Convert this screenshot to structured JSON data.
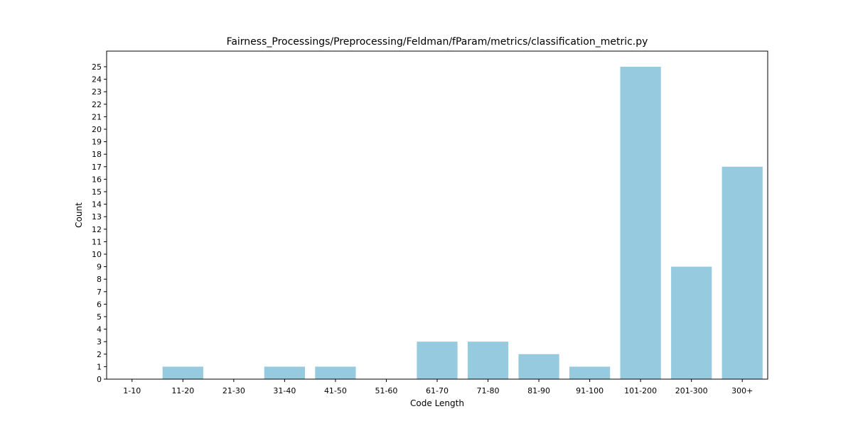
{
  "chart_data": {
    "type": "bar",
    "title": "Fairness_Processings/Preprocessing/Feldman/fParam/metrics/classification_metric.py",
    "xlabel": "Code Length",
    "ylabel": "Count",
    "categories": [
      "1-10",
      "11-20",
      "21-30",
      "31-40",
      "41-50",
      "51-60",
      "61-70",
      "71-80",
      "81-90",
      "91-100",
      "101-200",
      "201-300",
      "300+"
    ],
    "values": [
      0,
      1,
      0,
      1,
      1,
      0,
      3,
      3,
      2,
      1,
      25,
      9,
      17
    ],
    "ylim": [
      0,
      26.25
    ],
    "yticks": [
      0,
      1,
      2,
      3,
      4,
      5,
      6,
      7,
      8,
      9,
      10,
      11,
      12,
      13,
      14,
      15,
      16,
      17,
      18,
      19,
      20,
      21,
      22,
      23,
      24,
      25
    ],
    "bar_color": "#95cadf",
    "grid": false,
    "legend": false
  }
}
